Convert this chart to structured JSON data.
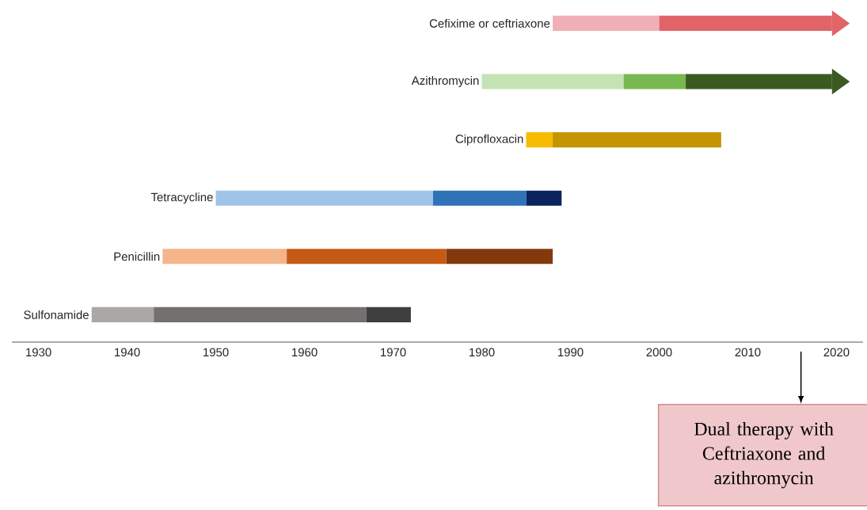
{
  "chart_data": {
    "type": "bar",
    "orientation": "horizontal",
    "categories": [
      "Cefixime or ceftriaxone",
      "Azithromycin",
      "Ciprofloxacin",
      "Tetracycline",
      "Penicillin",
      "Sulfonamide"
    ],
    "series": [
      {
        "colors": [
          "#f0b0b5",
          "#c5e3b4",
          "#f5bc00",
          "#9fc4e7",
          "#f5b48a",
          "#aaa7a7"
        ],
        "base": [
          1988,
          1980,
          1985,
          1950,
          1944,
          1936
        ],
        "values": [
          12,
          16,
          3,
          24.5,
          14,
          7
        ]
      },
      {
        "colors": [
          "#e06468",
          "#78b850",
          "#c49500",
          "#2f72b8",
          "#c55a15",
          "#747070"
        ],
        "base": [
          2000,
          1996,
          1988,
          1974.5,
          1958,
          1943
        ],
        "values": [
          19.5,
          7,
          19,
          10.5,
          18,
          24
        ]
      },
      {
        "colors": [
          null,
          "#3a5a22",
          null,
          "#0a2460",
          "#84390d",
          "#3f3f3f"
        ],
        "base": [
          null,
          2003,
          null,
          1985,
          1976,
          1967
        ],
        "values": [
          null,
          16.5,
          null,
          4,
          12,
          5
        ]
      }
    ],
    "xlim": [
      1927,
      2023
    ],
    "xticks": [
      1930,
      1940,
      1950,
      1960,
      1970,
      1980,
      1990,
      2000,
      2010,
      2020
    ],
    "annotations": [
      "Dual therapy with Ceftriaxone and azithromycin"
    ]
  }
}
